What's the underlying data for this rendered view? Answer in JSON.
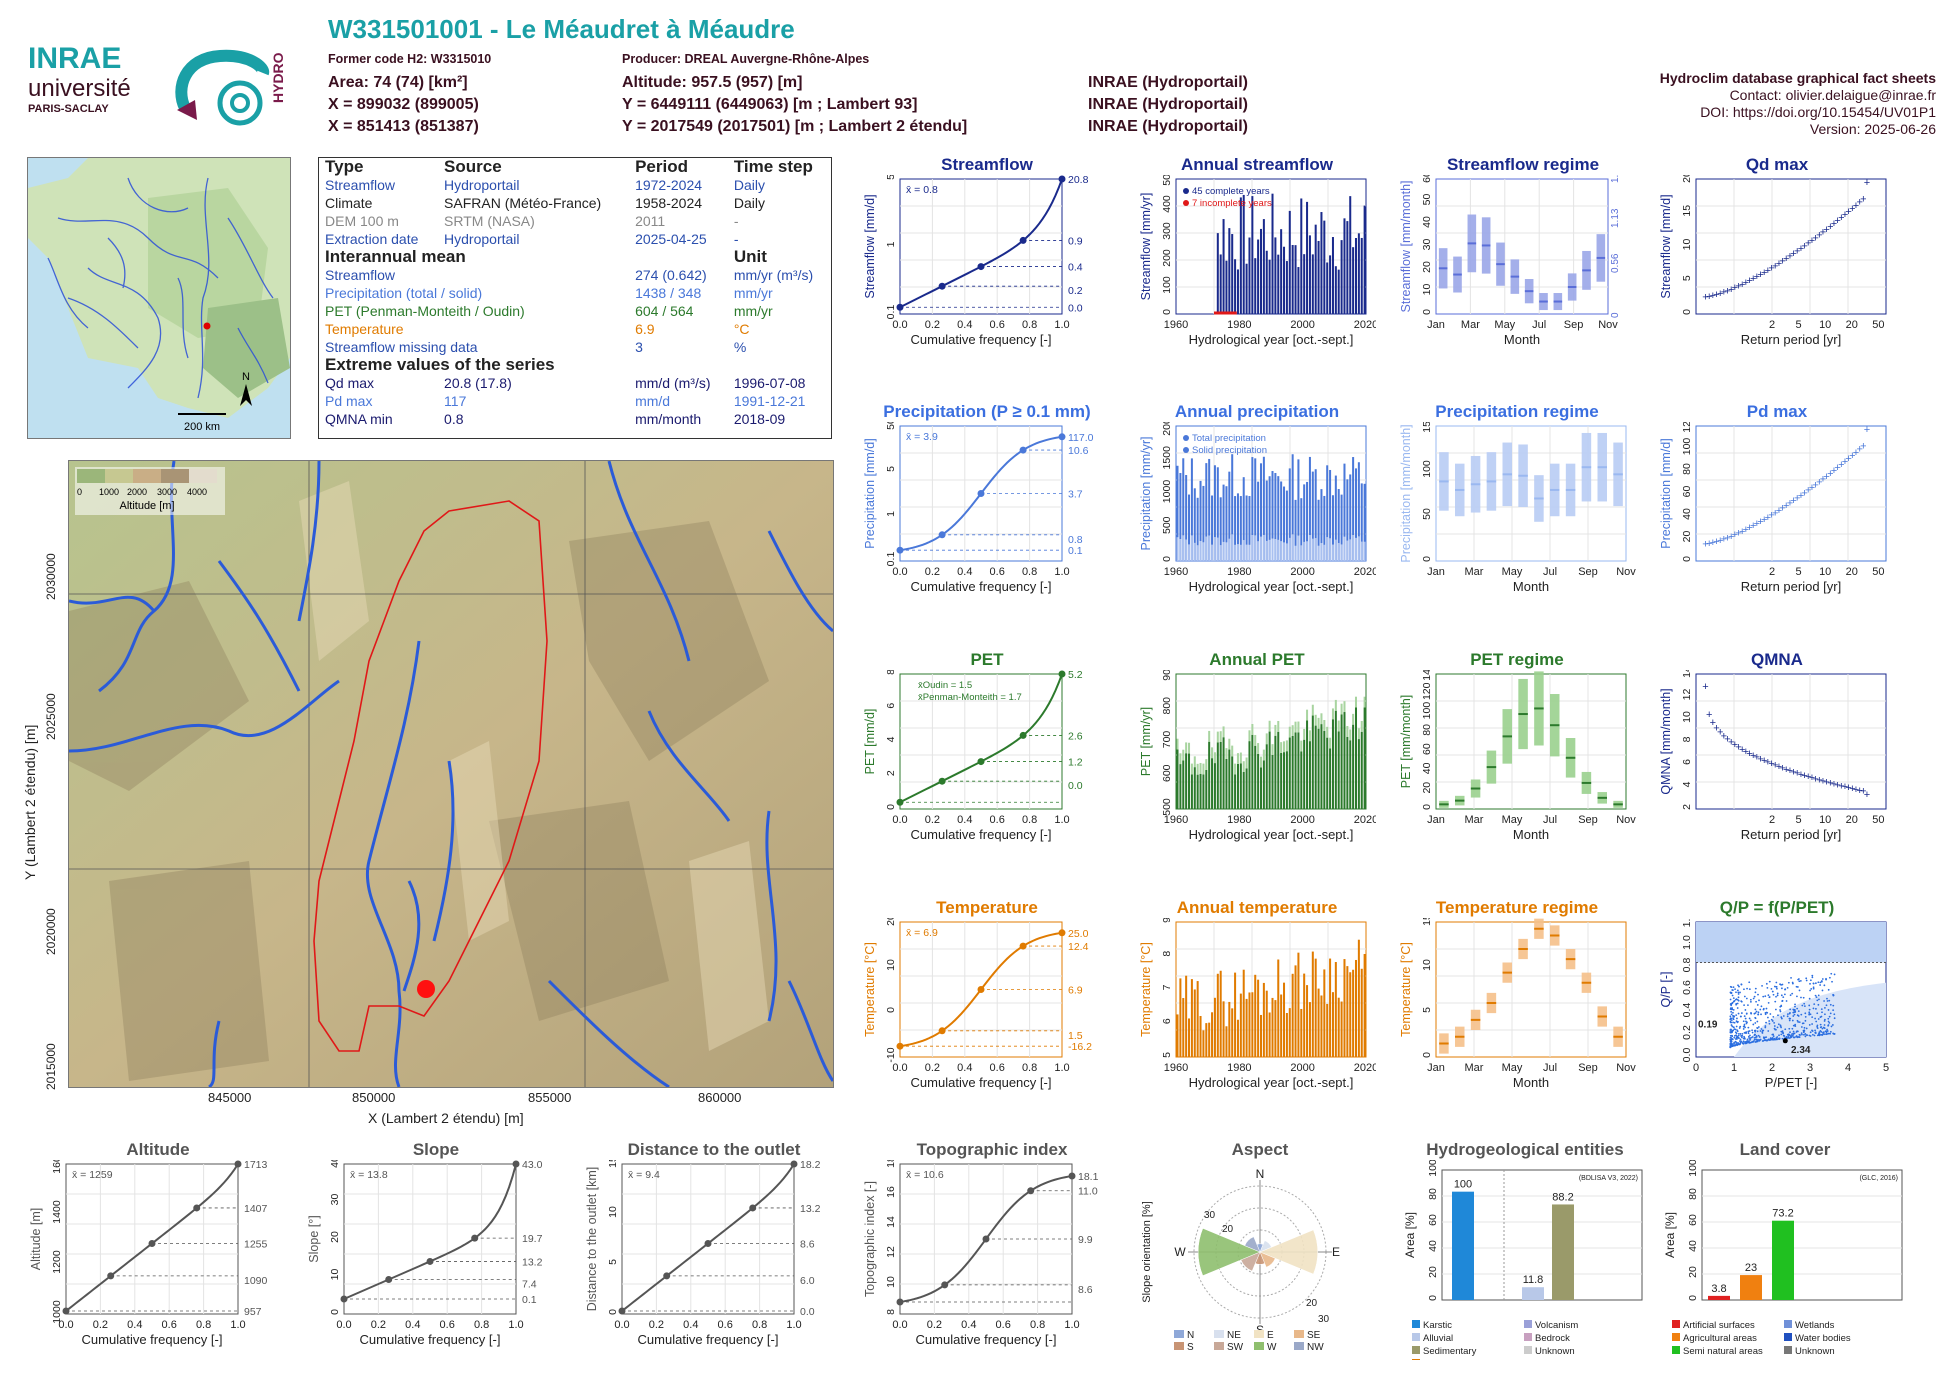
{
  "header": {
    "station_title": "W331501001 - Le Méaudret à Méaudre",
    "former_code": "Former code H2: W3315010",
    "producer": "Producer: DREAL Auvergne-Rhône-Alpes",
    "area": "Area: 74 (74) [km²]",
    "altitude": "Altitude: 957.5 (957) [m]",
    "x93": "X = 899032 (899005)",
    "y93": "Y = 6449111 (6449063) [m ; Lambert 93]",
    "src93": "INRAE (Hydroportail)",
    "x2e": "X = 851413 (851387)",
    "y2e": "Y = 2017549 (2017501) [m ; Lambert 2 étendu]",
    "src2e": "INRAE (Hydroportail)",
    "src_area": "INRAE (Hydroportail)",
    "db_title": "Hydroclim database graphical fact sheets",
    "contact": "Contact: olivier.delaigue@inrae.fr",
    "doi": "DOI: https://doi.org/10.15454/UV01P1",
    "version": "Version: 2025-06-26"
  },
  "logos": {
    "inrae": "INRAE",
    "universite": "université",
    "paris_saclay": "PARIS-SACLAY",
    "hydro": "HYDRO"
  },
  "info_table": {
    "headers": [
      "Type",
      "Source",
      "Period",
      "Time step"
    ],
    "rows": [
      {
        "type": "Streamflow",
        "source": "Hydroportail",
        "period": "1972-2024",
        "step": "Daily",
        "color": "#2b4fae"
      },
      {
        "type": "Climate",
        "source": "SAFRAN (Météo-France)",
        "period": "1958-2024",
        "step": "Daily",
        "color": "#222222"
      },
      {
        "type": "DEM 100 m",
        "source": "SRTM (NASA)",
        "period": "2011",
        "step": "-",
        "color": "#888888"
      },
      {
        "type": "Extraction date",
        "source": "Hydroportail",
        "period": "2025-04-25",
        "step": "-",
        "color": "#2b4fae"
      }
    ],
    "mean_header": "Interannual mean",
    "unit_header": "Unit",
    "means": [
      {
        "label": "Streamflow",
        "value": "274 (0.642)",
        "unit": "mm/yr (m³/s)",
        "color": "#2b4fae"
      },
      {
        "label": "Precipitation (total / solid)",
        "value": "1438 / 348",
        "unit": "mm/yr",
        "color": "#4a78d9"
      },
      {
        "label": "PET (Penman-Monteith / Oudin)",
        "value": "604 / 564",
        "unit": "mm/yr",
        "color": "#2c7a2c"
      },
      {
        "label": "Temperature",
        "value": "6.9",
        "unit": "°C",
        "color": "#e07b00"
      },
      {
        "label": "Streamflow missing data",
        "value": "3",
        "unit": "%",
        "color": "#2b4fae"
      }
    ],
    "extreme_header": "Extreme values of the series",
    "extremes": [
      {
        "label": "Qd max",
        "value": "20.8 (17.8)",
        "unit": "mm/d (m³/s)",
        "date": "1996-07-08",
        "color": "#1a1a6e"
      },
      {
        "label": "Pd max",
        "value": "117",
        "unit": "mm/d",
        "date": "1991-12-21",
        "color": "#4a78d9"
      },
      {
        "label": "QMNA min",
        "value": "0.8",
        "unit": "mm/month",
        "date": "2018-09",
        "color": "#1a1a6e"
      }
    ]
  },
  "map": {
    "scale_label": "200 km",
    "north": "N",
    "alt_legend_title": "Altitude [m]",
    "alt_legend_ticks": [
      "0",
      "1000",
      "2000",
      "3000",
      "4000"
    ],
    "x_axis_label": "X (Lambert 2 étendu) [m]",
    "y_axis_label": "Y (Lambert 2 étendu) [m]",
    "x_ticks": [
      "845000",
      "850000",
      "855000",
      "860000"
    ],
    "y_ticks": [
      "2015000",
      "2020000",
      "2025000",
      "2030000"
    ]
  },
  "chart_data": [
    {
      "id": "streamflow_fdc",
      "type": "line",
      "title": "Streamflow",
      "xlabel": "Cumulative frequency [-]",
      "ylabel": "Streamflow [mm/d]",
      "color": "#1a2a8c",
      "mean_label": "x̄ = 0.8",
      "x": [
        0,
        0.02,
        0.1,
        0.25,
        0.4,
        0.5,
        0.6,
        0.75,
        0.9,
        0.97,
        1
      ],
      "y": [
        0.0,
        0.09,
        0.13,
        0.2,
        0.27,
        0.4,
        0.5,
        0.9,
        1.8,
        4,
        20.8
      ],
      "right_ticks": [
        "20.8",
        "0.9",
        "0.4",
        "0.2",
        "0.0"
      ],
      "left_ticks": [
        "0.1",
        "1",
        "5"
      ],
      "x_ticks": [
        "0.0",
        "0.2",
        "0.4",
        "0.6",
        "0.8",
        "1.0"
      ]
    },
    {
      "id": "annual_streamflow",
      "type": "bar",
      "title": "Annual streamflow",
      "xlabel": "Hydrological year [oct.-sept.]",
      "ylabel": "Streamflow [mm/yr]",
      "color": "#1a2a8c",
      "legend": [
        "45 complete years",
        "7 incomplete years"
      ],
      "y_ticks": [
        "0",
        "100",
        "200",
        "300",
        "400",
        "500"
      ],
      "x_ticks": [
        "1960",
        "1980",
        "2000",
        "2020"
      ]
    },
    {
      "id": "streamflow_regime",
      "type": "bar",
      "title": "Streamflow regime",
      "xlabel": "Month",
      "ylabel": "Streamflow [mm/month]",
      "color": "#5a6ed8",
      "categories": [
        "Jan",
        "Feb",
        "Mar",
        "Apr",
        "May",
        "Jun",
        "Jul",
        "Aug",
        "Sep",
        "Oct",
        "Nov",
        "Dec"
      ],
      "median": [
        22,
        19,
        34,
        33,
        24,
        18,
        11,
        6,
        6,
        13,
        21,
        27
      ],
      "y_ticks": [
        "0",
        "10",
        "20",
        "30",
        "40",
        "50",
        "60"
      ],
      "right_ticks": [
        "0",
        "0.56",
        "1.13",
        "1.69"
      ],
      "x_ticks": [
        "Jan",
        "Mar",
        "May",
        "Jul",
        "Sep",
        "Nov"
      ]
    },
    {
      "id": "qd_max",
      "type": "scatter",
      "title": "Qd max",
      "xlabel": "Return period [yr]",
      "ylabel": "Streamflow [mm/d]",
      "color": "#1a2a8c",
      "y_ticks": [
        "0",
        "5",
        "10",
        "15",
        "20"
      ],
      "x_ticks": [
        "2",
        "5",
        "10",
        "20",
        "50"
      ]
    },
    {
      "id": "precip_fdc",
      "type": "line",
      "title": "Precipitation (P ≥ 0.1 mm)",
      "xlabel": "Cumulative frequency [-]",
      "ylabel": "Precipitation [mm/d]",
      "color": "#4a78d9",
      "mean_label": "x̄ = 3.9",
      "right_ticks": [
        "117.0",
        "10.6",
        "3.7",
        "0.8",
        "0.1"
      ],
      "left_ticks": [
        "0.1",
        "1",
        "5",
        "50"
      ],
      "x_ticks": [
        "0.0",
        "0.2",
        "0.4",
        "0.6",
        "0.8",
        "1.0"
      ]
    },
    {
      "id": "annual_precip",
      "type": "bar",
      "title": "Annual precipitation",
      "xlabel": "Hydrological year [oct.-sept.]",
      "ylabel": "Precipitation [mm/yr]",
      "color": "#4a78d9",
      "legend": [
        "Total precipitation",
        "Solid precipitation"
      ],
      "y_ticks": [
        "0",
        "500",
        "1000",
        "1500",
        "2000"
      ],
      "x_ticks": [
        "1960",
        "1980",
        "2000",
        "2020"
      ]
    },
    {
      "id": "precip_regime",
      "type": "bar",
      "title": "Precipitation regime",
      "xlabel": "Month",
      "ylabel": "Precipitation [mm/month]",
      "color": "#9ab8f0",
      "categories": [
        "Jan",
        "Feb",
        "Mar",
        "Apr",
        "May",
        "Jun",
        "Jul",
        "Aug",
        "Sep",
        "Oct",
        "Nov",
        "Dec"
      ],
      "median": [
        112,
        100,
        108,
        112,
        122,
        120,
        88,
        100,
        100,
        132,
        132,
        122
      ],
      "y_ticks": [
        "0",
        "50",
        "100",
        "150"
      ],
      "x_ticks": [
        "Jan",
        "Mar",
        "May",
        "Jul",
        "Sep",
        "Nov"
      ]
    },
    {
      "id": "pd_max",
      "type": "scatter",
      "title": "Pd max",
      "xlabel": "Return period [yr]",
      "ylabel": "Precipitation [mm/d]",
      "color": "#4a78d9",
      "y_ticks": [
        "0",
        "20",
        "40",
        "60",
        "80",
        "100",
        "120"
      ],
      "x_ticks": [
        "2",
        "5",
        "10",
        "20",
        "50"
      ]
    },
    {
      "id": "pet_fdc",
      "type": "line",
      "title": "PET",
      "xlabel": "Cumulative frequency [-]",
      "ylabel": "PET [mm/d]",
      "color": "#2c7a2c",
      "legend": [
        "x̄Oudin = 1.5",
        "x̄Penman-Monteith = 1.7"
      ],
      "right_ticks": [
        "5.2",
        "2.6",
        "1.2",
        "0.0"
      ],
      "left_ticks": [
        "0",
        "2",
        "4",
        "6",
        "8"
      ],
      "x_ticks": [
        "0.0",
        "0.2",
        "0.4",
        "0.6",
        "0.8",
        "1.0"
      ]
    },
    {
      "id": "annual_pet",
      "type": "bar",
      "title": "Annual PET",
      "xlabel": "Hydrological year [oct.-sept.]",
      "ylabel": "PET [mm/yr]",
      "color": "#2c7a2c",
      "y_ticks": [
        "500",
        "600",
        "700",
        "800",
        "900"
      ],
      "x_ticks": [
        "1960",
        "1980",
        "2000",
        "2020"
      ]
    },
    {
      "id": "pet_regime",
      "type": "bar",
      "title": "PET regime",
      "xlabel": "Month",
      "ylabel": "PET [mm/month]",
      "color": "#2c7a2c",
      "categories": [
        "Jan",
        "Feb",
        "Mar",
        "Apr",
        "May",
        "Jun",
        "Jul",
        "Aug",
        "Sep",
        "Oct",
        "Nov",
        "Dec"
      ],
      "median": [
        5,
        9,
        22,
        45,
        78,
        102,
        108,
        90,
        55,
        28,
        12,
        5
      ],
      "y_ticks": [
        "0",
        "20",
        "40",
        "60",
        "80",
        "100",
        "120",
        "140"
      ],
      "x_ticks": [
        "Jan",
        "Mar",
        "May",
        "Jul",
        "Sep",
        "Nov"
      ]
    },
    {
      "id": "qmna",
      "type": "scatter",
      "title": "QMNA",
      "xlabel": "Return period [yr]",
      "ylabel": "QMNA [mm/month]",
      "color": "#1a2a8c",
      "y_ticks": [
        "2",
        "4",
        "6",
        "8",
        "10",
        "12",
        "14"
      ],
      "x_ticks": [
        "2",
        "5",
        "10",
        "20",
        "50"
      ]
    },
    {
      "id": "temp_fdc",
      "type": "line",
      "title": "Temperature",
      "xlabel": "Cumulative frequency [-]",
      "ylabel": "Temperature [°C]",
      "color": "#e07b00",
      "mean_label": "x̄ = 6.9",
      "right_ticks": [
        "25.0",
        "12.4",
        "6.9",
        "1.5",
        "-16.2"
      ],
      "left_ticks": [
        "-10",
        "0",
        "10",
        "20"
      ],
      "x_ticks": [
        "0.0",
        "0.2",
        "0.4",
        "0.6",
        "0.8",
        "1.0"
      ]
    },
    {
      "id": "annual_temp",
      "type": "bar",
      "title": "Annual temperature",
      "xlabel": "Hydrological year [oct.-sept.]",
      "ylabel": "Temperature [°C]",
      "color": "#e07b00",
      "y_ticks": [
        "5",
        "6",
        "7",
        "8",
        "9"
      ],
      "x_ticks": [
        "1960",
        "1980",
        "2000",
        "2020"
      ]
    },
    {
      "id": "temp_regime",
      "type": "bar",
      "title": "Temperature regime",
      "xlabel": "Month",
      "ylabel": "Temperature [°C]",
      "color": "#e07b00",
      "categories": [
        "Jan",
        "Feb",
        "Mar",
        "Apr",
        "May",
        "Jun",
        "Jul",
        "Aug",
        "Sep",
        "Oct",
        "Nov",
        "Dec"
      ],
      "median": [
        -1,
        0,
        2.5,
        5,
        9.5,
        13,
        16,
        15,
        11.5,
        8,
        3,
        0
      ],
      "y_ticks": [
        "0",
        "5",
        "10",
        "15"
      ],
      "x_ticks": [
        "Jan",
        "Mar",
        "May",
        "Jul",
        "Sep",
        "Nov"
      ]
    },
    {
      "id": "qp_ppet",
      "type": "scatter",
      "title": "Q/P = f(P/PET)",
      "xlabel": "P/PET [-]",
      "ylabel": "Q/P [-]",
      "color": "#2b6ee0",
      "annotations": [
        "0.19",
        "2.34"
      ],
      "y_ticks": [
        "0.0",
        "0.2",
        "0.4",
        "0.6",
        "0.8",
        "1.0",
        "1.2"
      ],
      "x_ticks": [
        "0",
        "1",
        "2",
        "3",
        "4",
        "5"
      ]
    },
    {
      "id": "altitude_fdc",
      "type": "line",
      "title": "Altitude",
      "xlabel": "Cumulative frequency [-]",
      "ylabel": "Altitude [m]",
      "color": "#555555",
      "mean_label": "x̄ = 1259",
      "right_ticks": [
        "1713",
        "1407",
        "1255",
        "1090",
        "957"
      ],
      "left_ticks": [
        "1000",
        "1200",
        "1400",
        "1600"
      ],
      "x_ticks": [
        "0.0",
        "0.2",
        "0.4",
        "0.6",
        "0.8",
        "1.0"
      ]
    },
    {
      "id": "slope_fdc",
      "type": "line",
      "title": "Slope",
      "xlabel": "Cumulative frequency [-]",
      "ylabel": "Slope [°]",
      "color": "#555555",
      "mean_label": "x̄ = 13.8",
      "right_ticks": [
        "43.0",
        "19.7",
        "13.2",
        "7.4",
        "0.1"
      ],
      "left_ticks": [
        "0",
        "10",
        "20",
        "30",
        "40"
      ],
      "x_ticks": [
        "0.0",
        "0.2",
        "0.4",
        "0.6",
        "0.8",
        "1.0"
      ]
    },
    {
      "id": "distance_fdc",
      "type": "line",
      "title": "Distance to the outlet",
      "xlabel": "Cumulative frequency [-]",
      "ylabel": "Distance to the outlet [km]",
      "color": "#555555",
      "mean_label": "x̄ = 9.4",
      "right_ticks": [
        "18.2",
        "13.2",
        "8.6",
        "6.0",
        "0.0"
      ],
      "left_ticks": [
        "0",
        "5",
        "10",
        "15"
      ],
      "x_ticks": [
        "0.0",
        "0.2",
        "0.4",
        "0.6",
        "0.8",
        "1.0"
      ]
    },
    {
      "id": "topo_fdc",
      "type": "line",
      "title": "Topographic index",
      "xlabel": "Cumulative frequency [-]",
      "ylabel": "Topographic index [-]",
      "color": "#555555",
      "mean_label": "x̄ = 10.6",
      "right_ticks": [
        "18.1",
        "11.0",
        "9.9",
        "8.6"
      ],
      "left_ticks": [
        "8",
        "10",
        "12",
        "14",
        "16",
        "18"
      ],
      "x_ticks": [
        "0.0",
        "0.2",
        "0.4",
        "0.6",
        "0.8",
        "1.0"
      ]
    },
    {
      "id": "aspect",
      "type": "pie",
      "title": "Aspect",
      "ylabel": "Slope orientation [%]",
      "directions": [
        "N",
        "NE",
        "E",
        "SE",
        "S",
        "SW",
        "W",
        "NW"
      ],
      "rings": [
        "10",
        "20",
        "30"
      ],
      "compass": [
        "N",
        "E",
        "S",
        "W"
      ],
      "values": [
        4,
        6,
        28,
        8,
        6,
        10,
        30,
        8
      ],
      "colors": [
        "#8fa8d8",
        "#d8e0ee",
        "#f1e3c4",
        "#e8b88a",
        "#c89474",
        "#c8a898",
        "#8fbf6e",
        "#9aa8c8"
      ]
    },
    {
      "id": "hydrogeo",
      "type": "bar",
      "title": "Hydrogeological entities",
      "ylabel": "Area [%]",
      "note": "(BDLISA V3, 2022)",
      "values": [
        100,
        11.8,
        88.2
      ],
      "labels": [
        "100",
        "11.8",
        "88.2"
      ],
      "y_ticks": [
        "0",
        "20",
        "40",
        "60",
        "80",
        "100"
      ],
      "legend": [
        "Karstic",
        "Volcanism",
        "Alluvial",
        "Bedrock",
        "Sedimentary",
        "Unknown",
        "Intensively folded formation"
      ],
      "legend_colors": [
        "#1f88d8",
        "#9aa0d8",
        "#b8c8e8",
        "#c8a0c0",
        "#9a9a6a",
        "#cccccc",
        "#e07b00"
      ]
    },
    {
      "id": "land_cover",
      "type": "bar",
      "title": "Land cover",
      "ylabel": "Area [%]",
      "note": "(GLC, 2016)",
      "values": [
        3.8,
        23,
        73.2
      ],
      "labels": [
        "3.8",
        "23",
        "73.2"
      ],
      "y_ticks": [
        "0",
        "20",
        "40",
        "60",
        "80",
        "100"
      ],
      "legend": [
        "Artificial surfaces",
        "Wetlands",
        "Agricultural areas",
        "Water bodies",
        "Semi natural areas",
        "Unknown"
      ],
      "legend_colors": [
        "#e02020",
        "#7090d8",
        "#f08010",
        "#2050c0",
        "#20c020",
        "#777777"
      ]
    }
  ]
}
